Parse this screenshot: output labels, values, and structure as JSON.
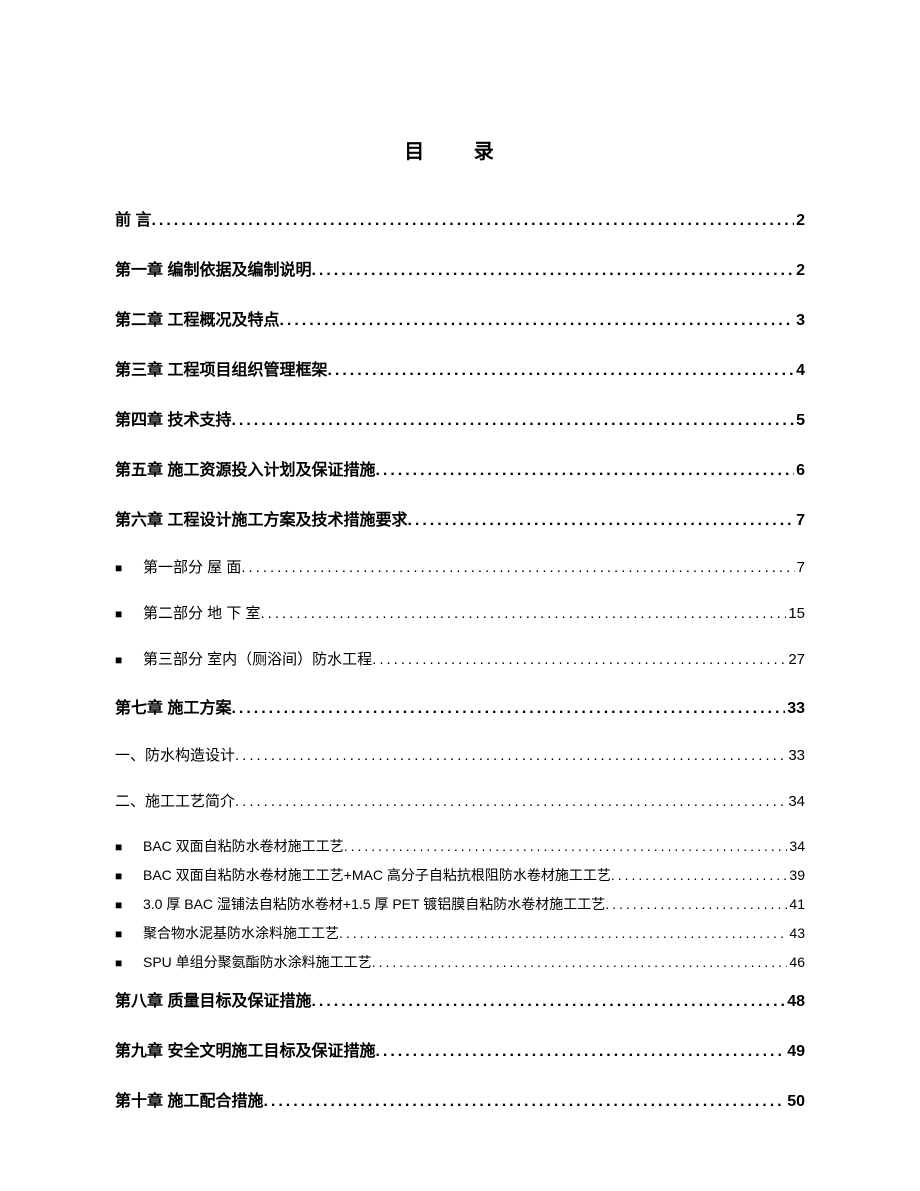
{
  "title": "目  录",
  "entries": [
    {
      "level": 0,
      "label": "前     言",
      "page": "2",
      "bullet": false
    },
    {
      "level": 0,
      "label": "第一章  编制依据及编制说明",
      "page": "2",
      "bullet": false
    },
    {
      "level": 0,
      "label": "第二章  工程概况及特点",
      "page": "3",
      "bullet": false
    },
    {
      "level": 0,
      "label": "第三章  工程项目组织管理框架",
      "page": "4",
      "bullet": false
    },
    {
      "level": 0,
      "label": "第四章  技术支持",
      "page": "5",
      "bullet": false
    },
    {
      "level": 0,
      "label": "第五章  施工资源投入计划及保证措施",
      "page": "6",
      "bullet": false
    },
    {
      "level": 0,
      "label": "第六章  工程设计施工方案及技术措施要求",
      "page": "7",
      "bullet": false
    },
    {
      "level": 1,
      "label": "第一部分  屋    面",
      "page": "7",
      "bullet": true
    },
    {
      "level": 1,
      "label": "第二部分  地 下 室",
      "page": "15",
      "bullet": true
    },
    {
      "level": 1,
      "label": "第三部分  室内（厕浴间）防水工程",
      "page": "27",
      "bullet": true
    },
    {
      "level": 0,
      "label": "第七章  施工方案",
      "page": "33",
      "bullet": false
    },
    {
      "level": "1b",
      "label": "一、防水构造设计",
      "page": "33",
      "bullet": false
    },
    {
      "level": "1b",
      "label": "二、施工工艺简介",
      "page": "34",
      "bullet": false
    },
    {
      "level": 2,
      "label": "BAC 双面自粘防水卷材施工工艺",
      "page": "34",
      "bullet": true
    },
    {
      "level": 2,
      "label": "BAC 双面自粘防水卷材施工工艺+MAC 高分子自粘抗根阻防水卷材施工工艺",
      "page": "39",
      "bullet": true
    },
    {
      "level": 2,
      "label": "3.0 厚 BAC 湿铺法自粘防水卷材+1.5 厚 PET 镀铝膜自粘防水卷材施工工艺",
      "page": "41",
      "bullet": true
    },
    {
      "level": 2,
      "label": "聚合物水泥基防水涂料施工工艺",
      "page": "43",
      "bullet": true
    },
    {
      "level": 2,
      "label": "SPU 单组分聚氨酯防水涂料施工工艺",
      "page": "46",
      "bullet": true
    },
    {
      "level": 0,
      "label": "第八章  质量目标及保证措施",
      "page": "48",
      "bullet": false,
      "gapBefore": true
    },
    {
      "level": 0,
      "label": "第九章  安全文明施工目标及保证措施",
      "page": "49",
      "bullet": false
    },
    {
      "level": 0,
      "label": "第十章  施工配合措施",
      "page": "50",
      "bullet": false
    }
  ],
  "style": {
    "page_bg": "#ffffff",
    "text_color": "#000000",
    "title_fontsize": 20,
    "level0_fontsize": 16,
    "level1_fontsize": 15,
    "level2_fontsize": 14,
    "bullet_char": "■",
    "leader_char": "."
  }
}
